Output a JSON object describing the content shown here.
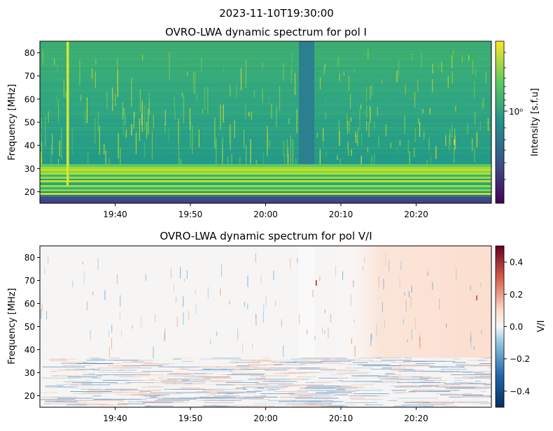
{
  "suptitle": "2023-11-10T19:30:00",
  "chart_data": [
    {
      "type": "heatmap",
      "title": "OVRO-LWA dynamic spectrum for pol I",
      "xlabel": "",
      "ylabel": "Frequency [MHz]",
      "x_ticks": [
        "19:40",
        "19:50",
        "20:00",
        "20:10",
        "20:20"
      ],
      "y_ticks": [
        20,
        30,
        40,
        50,
        60,
        70,
        80
      ],
      "ylim": [
        15,
        85
      ],
      "colormap": "viridis",
      "colorbar": {
        "label": "Intensity [s.f.u]",
        "scale": "log",
        "tick_labels": [
          "10⁰"
        ],
        "colors": [
          "#440154",
          "#3b528b",
          "#21918c",
          "#5ec962",
          "#fde725"
        ]
      },
      "features": {
        "background_color": "#2a9d7a",
        "gap_band_time": [
          "20:04:30",
          "20:06:30"
        ],
        "gap_band_color": "#2c7f8f",
        "bright_burst_time": "19:33:30",
        "bottom_band_color": "#3b4f8a"
      }
    },
    {
      "type": "heatmap",
      "title": "OVRO-LWA dynamic spectrum for pol V/I",
      "xlabel": "",
      "ylabel": "Frequency [MHz]",
      "x_ticks": [
        "19:40",
        "19:50",
        "20:00",
        "20:10",
        "20:20"
      ],
      "y_ticks": [
        20,
        30,
        40,
        50,
        60,
        70,
        80
      ],
      "ylim": [
        15,
        85
      ],
      "colormap": "RdBu_r",
      "colorbar": {
        "label": "V/I",
        "range": [
          -0.5,
          0.5
        ],
        "tick_values": [
          0.4,
          0.2,
          0.0,
          -0.2,
          -0.4
        ],
        "tick_labels": [
          "0.4",
          "0.2",
          "0.0",
          "−0.2",
          "−0.4"
        ],
        "colors": [
          "#053061",
          "#4393c3",
          "#f7f7f7",
          "#f4a582",
          "#67001f"
        ]
      }
    }
  ]
}
